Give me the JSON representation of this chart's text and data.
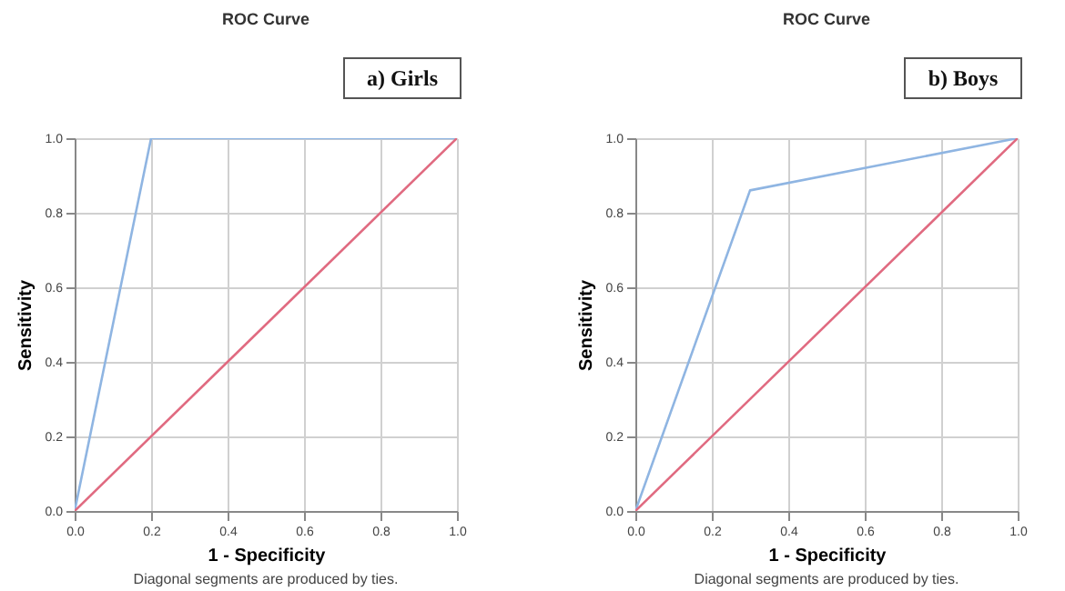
{
  "chart_data": [
    {
      "type": "line",
      "title": "ROC Curve",
      "xlabel": "1 - Specificity",
      "ylabel": "Sensitivity",
      "annotations": [
        "a) Girls",
        "Diagonal segments are produced by ties."
      ],
      "series": [
        {
          "color": "#8fb5e2",
          "x": [
            0,
            0.2,
            1
          ],
          "values": [
            0,
            1,
            1
          ]
        },
        {
          "color": "#e06a80",
          "x": [
            0,
            1
          ],
          "values": [
            0,
            1
          ]
        }
      ],
      "xlim": [
        0,
        1
      ],
      "ylim": [
        0,
        1
      ],
      "xticks": [
        {
          "value": 0,
          "label": "0.0"
        },
        {
          "value": 0.2,
          "label": "0.2"
        },
        {
          "value": 0.4,
          "label": "0.4"
        },
        {
          "value": 0.6,
          "label": "0.6"
        },
        {
          "value": 0.8,
          "label": "0.8"
        },
        {
          "value": 1,
          "label": "1.0"
        }
      ],
      "yticks": [
        {
          "value": 0,
          "label": "0.0"
        },
        {
          "value": 0.2,
          "label": "0.2"
        },
        {
          "value": 0.4,
          "label": "0.4"
        },
        {
          "value": 0.6,
          "label": "0.6"
        },
        {
          "value": 0.8,
          "label": "0.8"
        },
        {
          "value": 1,
          "label": "1.0"
        }
      ],
      "grid": true
    },
    {
      "type": "line",
      "title": "ROC Curve",
      "xlabel": "1 - Specificity",
      "ylabel": "Sensitivity",
      "annotations": [
        "b) Boys",
        "Diagonal segments are produced by ties."
      ],
      "series": [
        {
          "color": "#8fb5e2",
          "x": [
            0,
            0.3,
            1
          ],
          "values": [
            0,
            0.86,
            1
          ]
        },
        {
          "color": "#e06a80",
          "x": [
            0,
            1
          ],
          "values": [
            0,
            1
          ]
        }
      ],
      "xlim": [
        0,
        1
      ],
      "ylim": [
        0,
        1
      ],
      "xticks": [
        {
          "value": 0,
          "label": "0.0"
        },
        {
          "value": 0.2,
          "label": "0.2"
        },
        {
          "value": 0.4,
          "label": "0.4"
        },
        {
          "value": 0.6,
          "label": "0.6"
        },
        {
          "value": 0.8,
          "label": "0.8"
        },
        {
          "value": 1,
          "label": "1.0"
        }
      ],
      "yticks": [
        {
          "value": 0,
          "label": "0.0"
        },
        {
          "value": 0.2,
          "label": "0.2"
        },
        {
          "value": 0.4,
          "label": "0.4"
        },
        {
          "value": 0.6,
          "label": "0.6"
        },
        {
          "value": 0.8,
          "label": "0.8"
        },
        {
          "value": 1,
          "label": "1.0"
        }
      ],
      "grid": true
    }
  ]
}
